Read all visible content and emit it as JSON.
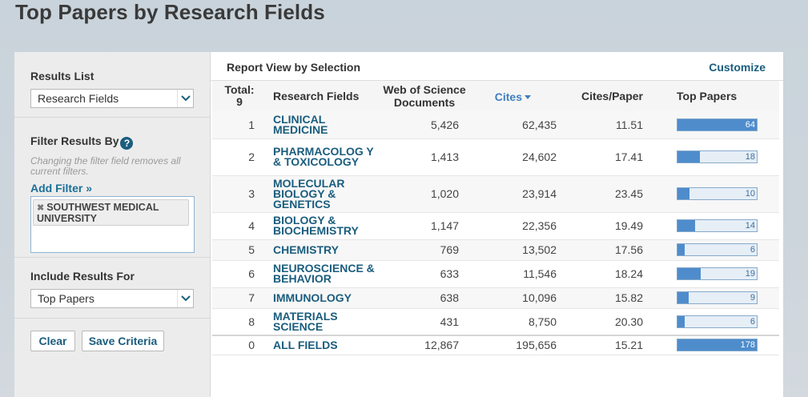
{
  "page": {
    "title": "Top Papers by Research Fields"
  },
  "sidebar": {
    "results_list": {
      "label": "Results List",
      "selected": "Research Fields"
    },
    "filter": {
      "label": "Filter Results By",
      "note": "Changing the filter field removes all current filters.",
      "add_filter": "Add Filter »",
      "chips": [
        "SOUTHWEST MEDICAL UNIVERSITY"
      ]
    },
    "include": {
      "label": "Include Results For",
      "selected": "Top Papers"
    },
    "buttons": {
      "clear": "Clear",
      "save": "Save Criteria"
    }
  },
  "main": {
    "report_view": "Report View by Selection",
    "customize": "Customize",
    "columns": {
      "total": "Total:",
      "total_count": "9",
      "field": "Research Fields",
      "wos": "Web of Science Documents",
      "cites": "Cites",
      "cites_per_paper": "Cites/Paper",
      "top_papers": "Top Papers"
    },
    "rows": [
      {
        "rank": "1",
        "field": "CLINICAL MEDICINE",
        "wos": "5,426",
        "cites": "62,435",
        "cpp": "11.51",
        "top": 64
      },
      {
        "rank": "2",
        "field": "PHARMACOLOG Y & TOXICOLOGY",
        "wos": "1,413",
        "cites": "24,602",
        "cpp": "17.41",
        "top": 18
      },
      {
        "rank": "3",
        "field": "MOLECULAR BIOLOGY & GENETICS",
        "wos": "1,020",
        "cites": "23,914",
        "cpp": "23.45",
        "top": 10
      },
      {
        "rank": "4",
        "field": "BIOLOGY & BIOCHEMISTRY",
        "wos": "1,147",
        "cites": "22,356",
        "cpp": "19.49",
        "top": 14
      },
      {
        "rank": "5",
        "field": "CHEMISTRY",
        "wos": "769",
        "cites": "13,502",
        "cpp": "17.56",
        "top": 6
      },
      {
        "rank": "6",
        "field": "NEUROSCIENCE & BEHAVIOR",
        "wos": "633",
        "cites": "11,546",
        "cpp": "18.24",
        "top": 19
      },
      {
        "rank": "7",
        "field": "IMMUNOLOGY",
        "wos": "638",
        "cites": "10,096",
        "cpp": "15.82",
        "top": 9
      },
      {
        "rank": "8",
        "field": "MATERIALS SCIENCE",
        "wos": "431",
        "cites": "8,750",
        "cpp": "20.30",
        "top": 6
      },
      {
        "rank": "0",
        "field": "ALL FIELDS",
        "wos": "12,867",
        "cites": "195,656",
        "cpp": "15.21",
        "top": 178
      }
    ],
    "top_papers_max": 64
  },
  "colors": {
    "accent": "#1a5d7e",
    "bar_fill": "#4e8ccc",
    "bar_bg": "#e6eef6"
  },
  "icons": {
    "help": "help-icon",
    "dropdown": "chevron-down-icon",
    "remove": "close-icon",
    "sort": "sort-desc-icon"
  }
}
